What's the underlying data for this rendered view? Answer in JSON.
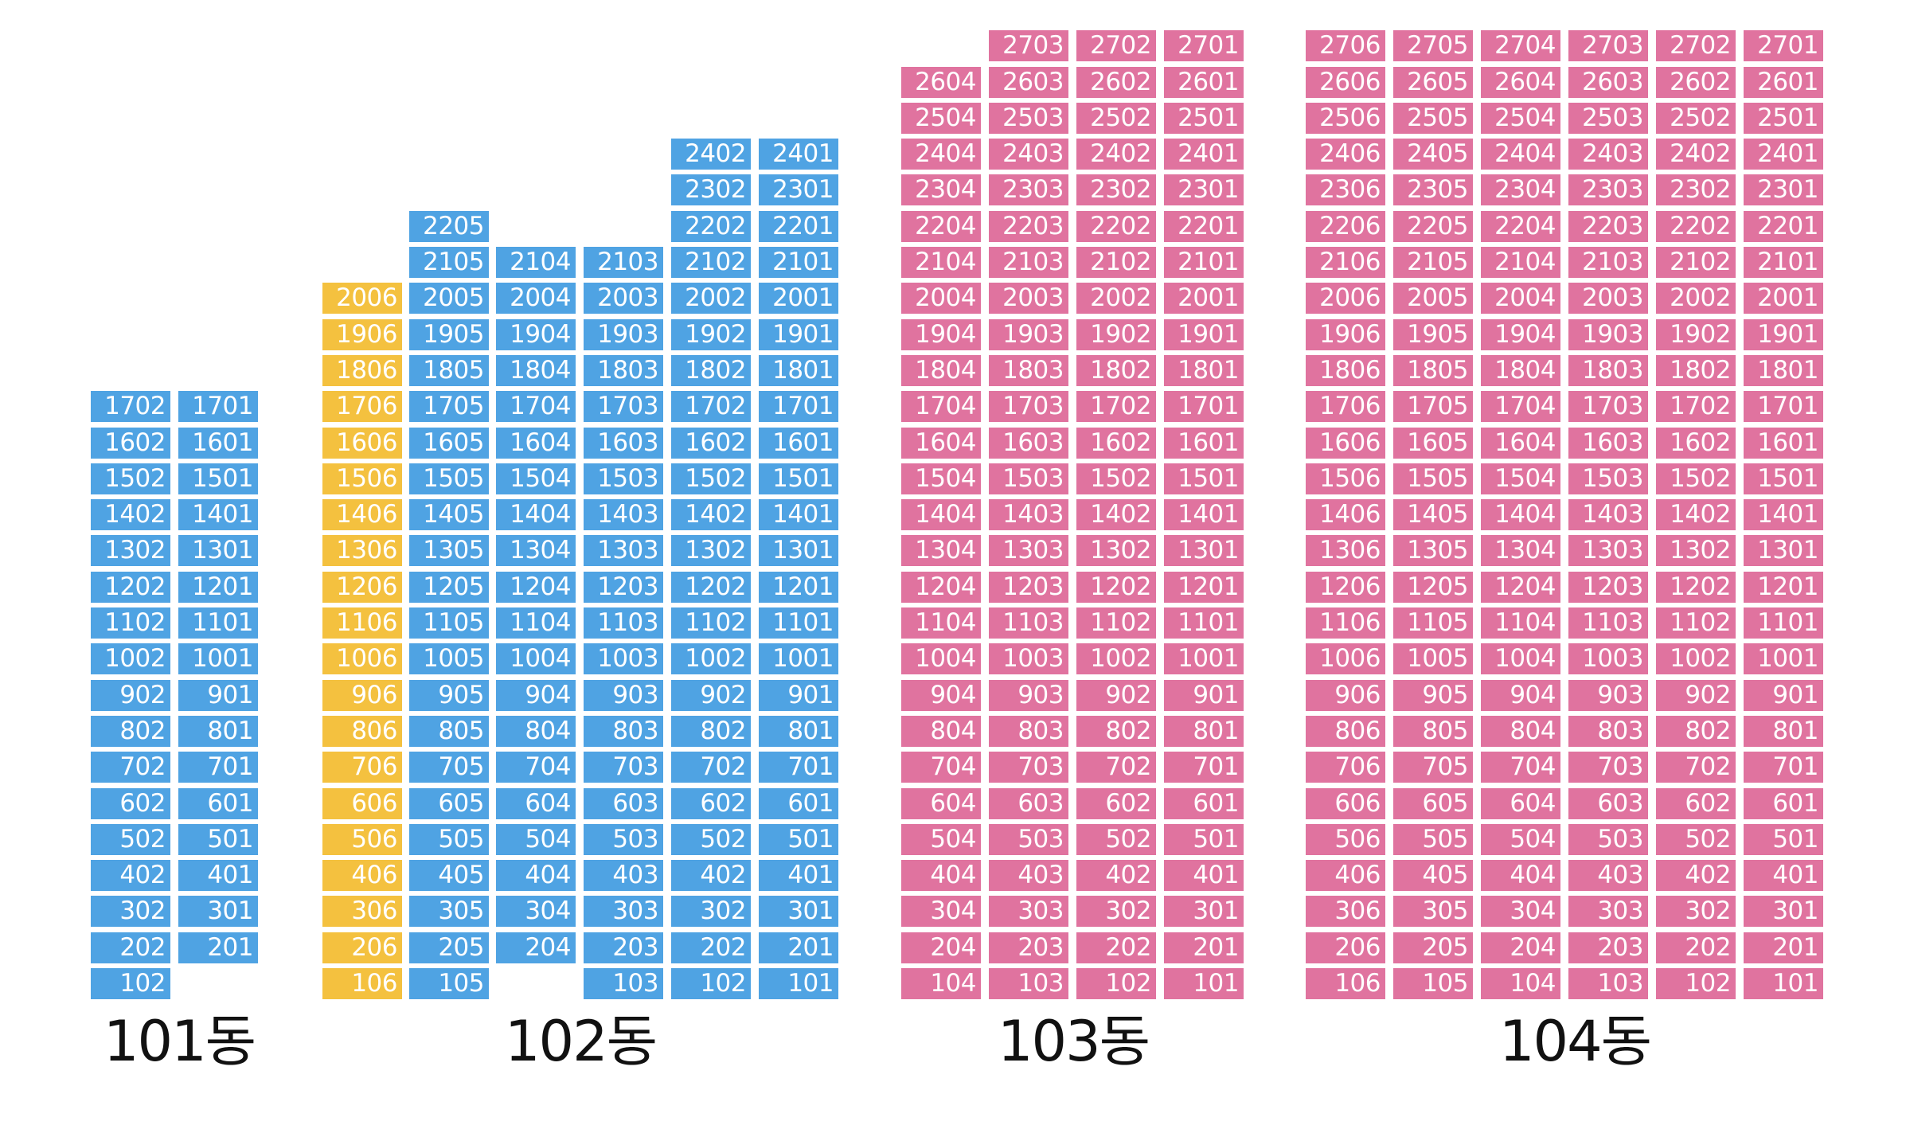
{
  "colors": {
    "blue": "#4fa3e3",
    "yellow": "#f4c13f",
    "pink": "#e0739f"
  },
  "buildings": [
    {
      "label": "101동",
      "color": "blue",
      "columns": [
        {
          "line": "02",
          "floors": [
            1,
            17
          ]
        },
        {
          "line": "01",
          "floors": [
            2,
            17
          ]
        }
      ]
    },
    {
      "label": "102동",
      "color": "blue",
      "columns": [
        {
          "line": "06",
          "floors": [
            1,
            20
          ],
          "color": "yellow"
        },
        {
          "line": "05",
          "floors": [
            1,
            22
          ]
        },
        {
          "line": "04",
          "floors": [
            2,
            21
          ]
        },
        {
          "line": "03",
          "floors": [
            1,
            21
          ]
        },
        {
          "line": "02",
          "floors": [
            1,
            24
          ]
        },
        {
          "line": "01",
          "floors": [
            1,
            24
          ]
        }
      ]
    },
    {
      "label": "103동",
      "color": "pink",
      "columns": [
        {
          "line": "04",
          "floors": [
            1,
            26
          ]
        },
        {
          "line": "03",
          "floors": [
            1,
            27
          ]
        },
        {
          "line": "02",
          "floors": [
            1,
            27
          ]
        },
        {
          "line": "01",
          "floors": [
            1,
            27
          ]
        }
      ]
    },
    {
      "label": "104동",
      "color": "pink",
      "columns": [
        {
          "line": "06",
          "floors": [
            1,
            27
          ]
        },
        {
          "line": "05",
          "floors": [
            1,
            27
          ]
        },
        {
          "line": "04",
          "floors": [
            1,
            27
          ]
        },
        {
          "line": "03",
          "floors": [
            1,
            27
          ]
        },
        {
          "line": "02",
          "floors": [
            1,
            27
          ]
        },
        {
          "line": "01",
          "floors": [
            1,
            27
          ]
        }
      ]
    }
  ]
}
